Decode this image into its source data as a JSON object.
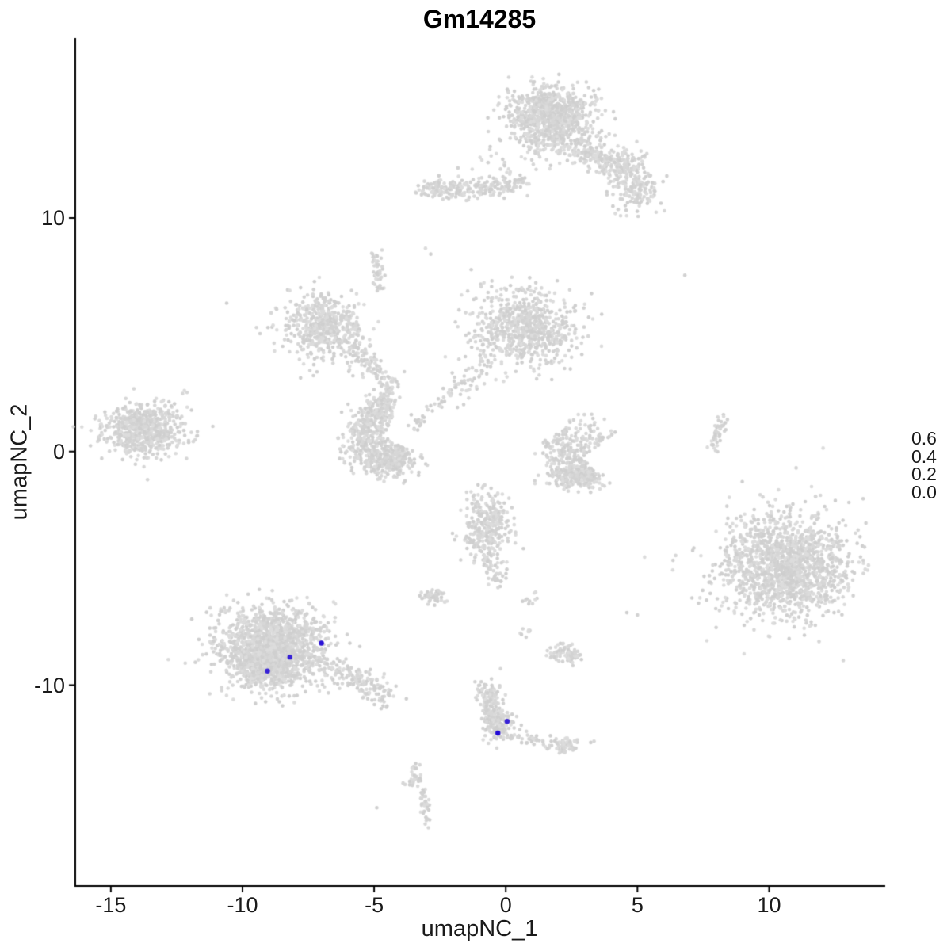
{
  "chart_data": {
    "type": "scatter",
    "title": "Gm14285",
    "xlabel": "umapNC_1",
    "ylabel": "umapNC_2",
    "xlim": [
      -16.35,
      14.35
    ],
    "ylim": [
      -18.6,
      17.7
    ],
    "grid": false,
    "background": "#ffffff",
    "axis_color": "#000000",
    "text_color": "#1a1a1a",
    "point_radius": 2.3,
    "point_shades": [
      "#d2d2d2",
      "#d7d7d7",
      "#dcdcdc",
      "#cfcfcf"
    ],
    "x_ticks": [
      {
        "value": -15,
        "label": "-15"
      },
      {
        "value": -10,
        "label": "-10"
      },
      {
        "value": -5,
        "label": "-5"
      },
      {
        "value": 0,
        "label": "0"
      },
      {
        "value": 5,
        "label": "5"
      },
      {
        "value": 10,
        "label": "10"
      }
    ],
    "y_ticks": [
      {
        "value": 10,
        "label": "10"
      },
      {
        "value": 0,
        "label": "0"
      },
      {
        "value": -10,
        "label": "-10"
      }
    ],
    "legend": {
      "position": "right",
      "color_low": "#d3d3d3",
      "color_high": "#2209d6",
      "min_value": 0.0,
      "max_value": 0.68,
      "ticks": [
        {
          "value": 0.6,
          "label": "0.6"
        },
        {
          "value": 0.4,
          "label": "0.4"
        },
        {
          "value": 0.2,
          "label": "0.2"
        },
        {
          "value": 0.0,
          "label": "0.0"
        }
      ]
    },
    "clusters": [
      {
        "shape": "blob",
        "cx": 1.7,
        "cy": 14.4,
        "sx": 0.78,
        "sy": 0.62,
        "n": 850
      },
      {
        "shape": "blob",
        "cx": 1.9,
        "cy": 13.2,
        "sx": 0.85,
        "sy": 0.45,
        "n": 110
      },
      {
        "shape": "streak",
        "x1": 2.8,
        "y1": 13.1,
        "x2": 4.6,
        "y2": 11.9,
        "jitter": 0.32,
        "n": 200
      },
      {
        "shape": "blob",
        "cx": 5.0,
        "cy": 11.2,
        "sx": 0.42,
        "sy": 0.5,
        "n": 150
      },
      {
        "shape": "blob",
        "cx": 4.7,
        "cy": 12.4,
        "sx": 0.5,
        "sy": 0.35,
        "n": 55
      },
      {
        "shape": "streak",
        "x1": -3.3,
        "y1": 11.25,
        "x2": -1.3,
        "y2": 11.2,
        "jitter": 0.2,
        "n": 130
      },
      {
        "shape": "streak",
        "x1": -1.2,
        "y1": 11.3,
        "x2": 0.6,
        "y2": 11.5,
        "jitter": 0.22,
        "n": 120
      },
      {
        "shape": "blob",
        "cx": -0.2,
        "cy": 12.2,
        "sx": 0.9,
        "sy": 0.45,
        "n": 20
      },
      {
        "shape": "blob",
        "cx": -6.9,
        "cy": 5.4,
        "sx": 0.75,
        "sy": 0.68,
        "n": 520
      },
      {
        "shape": "streak",
        "x1": -5.9,
        "y1": 4.4,
        "x2": -4.4,
        "y2": 2.9,
        "jitter": 0.28,
        "n": 110
      },
      {
        "shape": "streak",
        "x1": -4.5,
        "y1": 2.7,
        "x2": -4.8,
        "y2": 1.3,
        "jitter": 0.22,
        "n": 80
      },
      {
        "shape": "streak",
        "x1": -5.0,
        "y1": 8.4,
        "x2": -4.8,
        "y2": 7.0,
        "jitter": 0.14,
        "n": 45
      },
      {
        "shape": "blob",
        "cx": 0.7,
        "cy": 5.2,
        "sx": 0.95,
        "sy": 0.72,
        "n": 680
      },
      {
        "shape": "streak",
        "x1": -0.6,
        "y1": 3.9,
        "x2": -2.2,
        "y2": 2.3,
        "jitter": 0.26,
        "n": 60
      },
      {
        "shape": "streak",
        "x1": -2.4,
        "y1": 2.1,
        "x2": -3.5,
        "y2": 1.0,
        "jitter": 0.2,
        "n": 30
      },
      {
        "shape": "blob",
        "cx": 0.6,
        "cy": 6.7,
        "sx": 1.05,
        "sy": 0.35,
        "n": 50
      },
      {
        "shape": "arc",
        "cx": -4.65,
        "cy": 0.55,
        "r": 1.0,
        "a1": 70,
        "a2": 335,
        "th": 0.4,
        "n": 520
      },
      {
        "shape": "blob",
        "cx": -4.4,
        "cy": -0.5,
        "sx": 0.45,
        "sy": 0.25,
        "n": 130
      },
      {
        "shape": "blob",
        "cx": -13.8,
        "cy": 0.95,
        "sx": 0.7,
        "sy": 0.52,
        "n": 600
      },
      {
        "shape": "blob",
        "cx": -13.5,
        "cy": 0.9,
        "sx": 1.05,
        "sy": 0.8,
        "n": 70
      },
      {
        "shape": "arc",
        "cx": 2.85,
        "cy": -0.3,
        "r": 0.9,
        "a1": 40,
        "a2": 320,
        "th": 0.4,
        "n": 380
      },
      {
        "shape": "blob",
        "cx": 2.6,
        "cy": -1.05,
        "sx": 0.4,
        "sy": 0.2,
        "n": 90
      },
      {
        "shape": "streak",
        "x1": 7.85,
        "y1": 0.1,
        "x2": 8.25,
        "y2": 1.45,
        "jitter": 0.11,
        "n": 45
      },
      {
        "shape": "blob",
        "cx": 10.6,
        "cy": -4.9,
        "sx": 1.15,
        "sy": 1.05,
        "n": 1450
      },
      {
        "shape": "blob",
        "cx": 10.4,
        "cy": -4.8,
        "sx": 1.6,
        "sy": 1.45,
        "n": 110
      },
      {
        "shape": "blob",
        "cx": -0.75,
        "cy": -3.3,
        "sx": 0.45,
        "sy": 0.78,
        "n": 320
      },
      {
        "shape": "streak",
        "x1": -0.6,
        "y1": -4.6,
        "x2": -0.2,
        "y2": -5.7,
        "jitter": 0.18,
        "n": 35
      },
      {
        "shape": "blob",
        "cx": -2.75,
        "cy": -6.2,
        "sx": 0.22,
        "sy": 0.17,
        "n": 55
      },
      {
        "shape": "blob",
        "cx": 0.9,
        "cy": -6.3,
        "sx": 0.14,
        "sy": 0.11,
        "n": 10
      },
      {
        "shape": "blob",
        "cx": 0.75,
        "cy": -7.75,
        "sx": 0.12,
        "sy": 0.1,
        "n": 8
      },
      {
        "shape": "blob",
        "cx": 2.25,
        "cy": -8.7,
        "sx": 0.32,
        "sy": 0.2,
        "n": 85
      },
      {
        "shape": "blob",
        "cx": -8.8,
        "cy": -8.4,
        "sx": 1.05,
        "sy": 0.85,
        "n": 1450
      },
      {
        "shape": "blob",
        "cx": -9.1,
        "cy": -9.0,
        "sx": 0.55,
        "sy": 0.45,
        "n": 380
      },
      {
        "shape": "streak",
        "x1": -6.6,
        "y1": -9.2,
        "x2": -4.4,
        "y2": -10.6,
        "jitter": 0.28,
        "n": 150
      },
      {
        "shape": "streak",
        "x1": -0.8,
        "y1": -10.1,
        "x2": -0.25,
        "y2": -11.7,
        "jitter": 0.2,
        "n": 150
      },
      {
        "shape": "blob",
        "cx": -0.3,
        "cy": -11.7,
        "sx": 0.3,
        "sy": 0.33,
        "n": 130
      },
      {
        "shape": "streak",
        "x1": 0.1,
        "y1": -12.1,
        "x2": 1.6,
        "y2": -12.45,
        "jitter": 0.14,
        "n": 40
      },
      {
        "shape": "blob",
        "cx": 2.3,
        "cy": -12.55,
        "sx": 0.3,
        "sy": 0.17,
        "n": 55
      },
      {
        "shape": "blob",
        "cx": -3.45,
        "cy": -13.9,
        "sx": 0.17,
        "sy": 0.28,
        "n": 32
      },
      {
        "shape": "streak",
        "x1": -3.15,
        "y1": -14.6,
        "x2": -2.95,
        "y2": -15.9,
        "jitter": 0.11,
        "n": 38
      }
    ],
    "singles": [
      [
        -10.6,
        6.35
      ],
      [
        6.8,
        7.55
      ],
      [
        -3.05,
        8.7
      ],
      [
        -2.85,
        8.45
      ],
      [
        5.0,
        -7.0
      ],
      [
        4.6,
        -6.9
      ],
      [
        -4.9,
        -15.25
      ],
      [
        3.35,
        -12.4
      ],
      [
        -12.1,
        1.9
      ],
      [
        -0.2,
        -9.3
      ]
    ],
    "highlighted_points": [
      {
        "x": -9.05,
        "y": -9.4,
        "value": 0.6
      },
      {
        "x": -8.2,
        "y": -8.8,
        "value": 0.6
      },
      {
        "x": -7.0,
        "y": -8.2,
        "value": 0.65
      },
      {
        "x": -0.3,
        "y": -12.05,
        "value": 0.68
      },
      {
        "x": 0.05,
        "y": -11.55,
        "value": 0.6
      }
    ]
  }
}
